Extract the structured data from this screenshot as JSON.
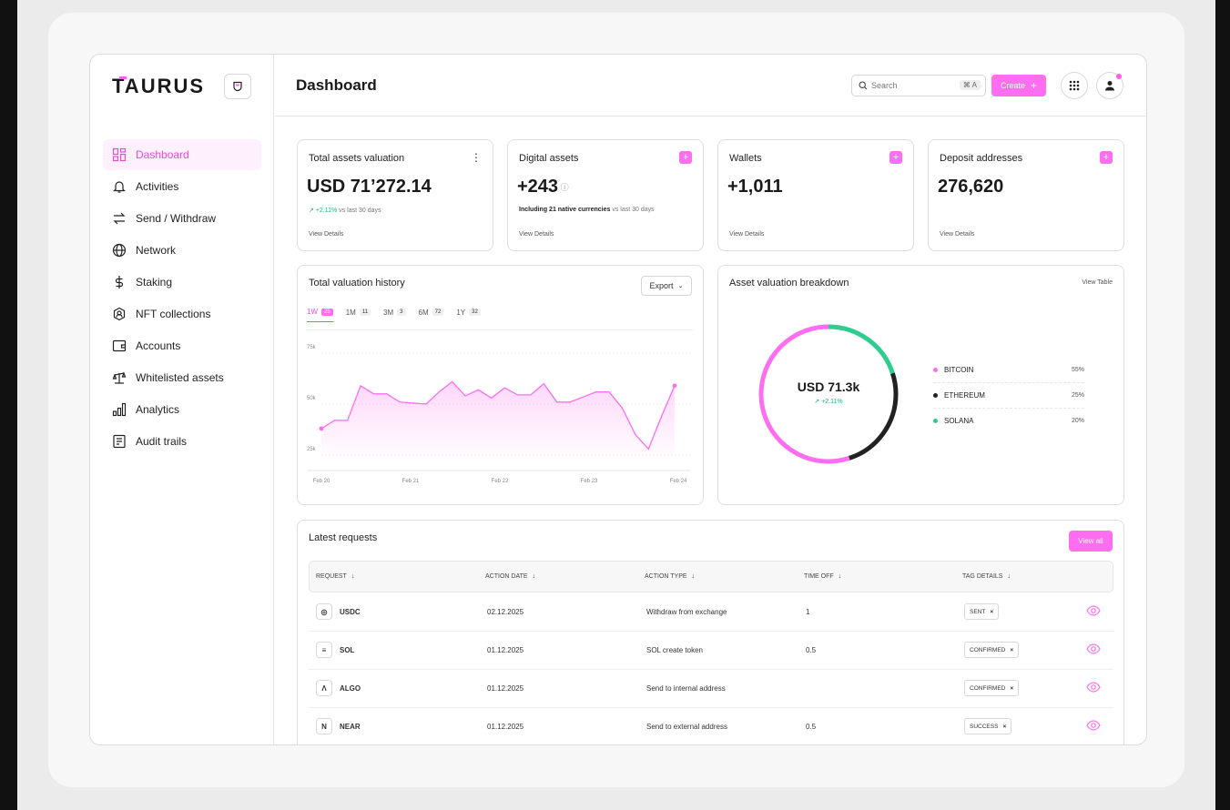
{
  "brand": {
    "name": "TAURUS",
    "accent": "#ff6ef0"
  },
  "sidebar": {
    "items": [
      {
        "label": "Dashboard",
        "icon": "dashboard-icon",
        "active": true
      },
      {
        "label": "Activities",
        "icon": "bell-icon"
      },
      {
        "label": "Send / Withdraw",
        "icon": "transfer-icon"
      },
      {
        "label": "Network",
        "icon": "globe-icon"
      },
      {
        "label": "Staking",
        "icon": "dollar-icon"
      },
      {
        "label": "NFT collections",
        "icon": "nft-badge-icon"
      },
      {
        "label": "Accounts",
        "icon": "wallet-icon"
      },
      {
        "label": "Whitelisted assets",
        "icon": "scale-icon"
      },
      {
        "label": "Analytics",
        "icon": "bar-chart-icon"
      },
      {
        "label": "Audit trails",
        "icon": "document-icon"
      }
    ]
  },
  "header": {
    "title": "Dashboard",
    "search_placeholder": "Search",
    "search_shortcut": "⌘ A",
    "create_label": "Create"
  },
  "stats": {
    "total": {
      "title": "Total assets valuation",
      "value": "USD 71’272.14",
      "change": "+2.11%",
      "change_note": "vs last 30 days",
      "link": "View Details"
    },
    "digital": {
      "title": "Digital assets",
      "value": "+243",
      "note_bold": "Including 21 native currencies",
      "note": "vs last 30 days",
      "link": "View Details"
    },
    "wallets": {
      "title": "Wallets",
      "value": "+1,011",
      "link": "View Details"
    },
    "deposit": {
      "title": "Deposit addresses",
      "value": "276,620",
      "link": "View Details"
    }
  },
  "history": {
    "title": "Total valuation history",
    "export_label": "Export",
    "tabs": [
      {
        "label": "1W",
        "count": "25",
        "active": true
      },
      {
        "label": "1M",
        "count": "11"
      },
      {
        "label": "3M",
        "count": "3"
      },
      {
        "label": "6M",
        "count": "72"
      },
      {
        "label": "1Y",
        "count": "32"
      }
    ]
  },
  "chart_data": {
    "type": "area",
    "x_ticks": [
      "Feb 20",
      "Feb 21",
      "Feb 22",
      "Feb 23",
      "Feb 24"
    ],
    "y_ticks": [
      "75k",
      "50k",
      "25k"
    ],
    "ylim": [
      25000,
      75000
    ],
    "values": [
      38000,
      42000,
      42000,
      59000,
      55000,
      55000,
      51000,
      50500,
      50000,
      56000,
      61000,
      54000,
      57000,
      53000,
      58000,
      54500,
      54500,
      60000,
      51000,
      51000,
      53500,
      56000,
      56000,
      48000,
      35000,
      28000,
      44000,
      59000
    ],
    "color": "#ff6ef0",
    "grid": true
  },
  "breakdown": {
    "title": "Asset valuation breakdown",
    "link": "View Table",
    "center_value": "USD 71.3k",
    "center_change": "+2.11%",
    "legend": [
      {
        "name": "BITCOIN",
        "pct": "55%",
        "value": 55,
        "color": "#ff6ef0"
      },
      {
        "name": "ETHEREUM",
        "pct": "25%",
        "value": 25,
        "color": "#222222"
      },
      {
        "name": "SOLANA",
        "pct": "20%",
        "value": 20,
        "color": "#2ecc8f"
      }
    ]
  },
  "requests": {
    "title": "Latest requests",
    "view_all": "View all",
    "columns": [
      "REQUEST",
      "ACTION DATE",
      "ACTION TYPE",
      "TIME OFF",
      "TAG DETAILS"
    ],
    "rows": [
      {
        "asset": "USDC",
        "icon": "usdc-icon",
        "glyph": "◎",
        "date": "02.12.2025",
        "action": "Withdraw from exchange",
        "time": "1",
        "tag": "SENT"
      },
      {
        "asset": "SOL",
        "icon": "sol-icon",
        "glyph": "≡",
        "date": "01.12.2025",
        "action": "SOL create token",
        "time": "0.5",
        "tag": "CONFIRMED"
      },
      {
        "asset": "ALGO",
        "icon": "algo-icon",
        "glyph": "Λ",
        "date": "01.12.2025",
        "action": "Send to internal address",
        "time": "",
        "tag": "CONFIRMED"
      },
      {
        "asset": "NEAR",
        "icon": "near-icon",
        "glyph": "N",
        "date": "01.12.2025",
        "action": "Send to external address",
        "time": "0.5",
        "tag": "SUCCESS"
      }
    ]
  }
}
